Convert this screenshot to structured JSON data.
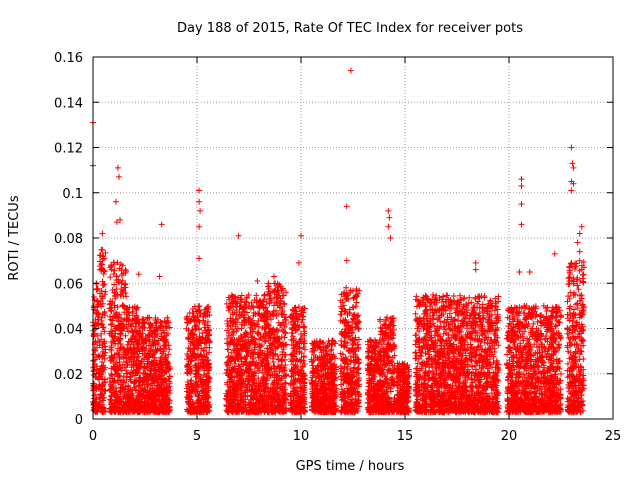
{
  "chart_data": {
    "type": "scatter",
    "title": "Day 188 of 2015, Rate Of TEC Index for receiver pots",
    "xlabel": "GPS time / hours",
    "ylabel": "ROTI / TECUs",
    "xlim": [
      0,
      25
    ],
    "ylim": [
      0,
      0.16
    ],
    "xticks": [
      0,
      5,
      10,
      15,
      20,
      25
    ],
    "xtick_labels": [
      "0",
      "5",
      "10",
      "15",
      "20",
      "25"
    ],
    "yticks": [
      0,
      0.02,
      0.04,
      0.06,
      0.08,
      0.1,
      0.12,
      0.14,
      0.16
    ],
    "ytick_labels": [
      "0",
      "0.02",
      "0.04",
      "0.06",
      "0.08",
      "0.1",
      "0.12",
      "0.14",
      "0.16"
    ],
    "grid": true,
    "marker": "+",
    "color": "#ff0000",
    "clusters": [
      {
        "x0": 0.0,
        "x1": 0.3,
        "ymax": 0.06
      },
      {
        "x0": 0.3,
        "x1": 0.6,
        "ymax": 0.075
      },
      {
        "x0": 0.8,
        "x1": 1.6,
        "ymax": 0.07
      },
      {
        "x0": 1.6,
        "x1": 2.2,
        "ymax": 0.05
      },
      {
        "x0": 2.2,
        "x1": 2.8,
        "ymax": 0.045
      },
      {
        "x0": 2.8,
        "x1": 3.7,
        "ymax": 0.045
      },
      {
        "x0": 4.5,
        "x1": 5.6,
        "ymax": 0.05
      },
      {
        "x0": 6.4,
        "x1": 8.4,
        "ymax": 0.055
      },
      {
        "x0": 8.4,
        "x1": 9.3,
        "ymax": 0.06
      },
      {
        "x0": 9.5,
        "x1": 10.2,
        "ymax": 0.05
      },
      {
        "x0": 10.5,
        "x1": 11.7,
        "ymax": 0.035
      },
      {
        "x0": 11.9,
        "x1": 12.8,
        "ymax": 0.058
      },
      {
        "x0": 13.2,
        "x1": 13.8,
        "ymax": 0.035
      },
      {
        "x0": 13.8,
        "x1": 14.5,
        "ymax": 0.045
      },
      {
        "x0": 14.6,
        "x1": 15.2,
        "ymax": 0.025
      },
      {
        "x0": 15.5,
        "x1": 19.5,
        "ymax": 0.055
      },
      {
        "x0": 19.9,
        "x1": 22.5,
        "ymax": 0.05
      },
      {
        "x0": 22.8,
        "x1": 23.6,
        "ymax": 0.07
      }
    ],
    "outliers": [
      {
        "x": 0.0,
        "y": 0.131
      },
      {
        "x": 0.0,
        "y": 0.112
      },
      {
        "x": 0.45,
        "y": 0.082
      },
      {
        "x": 1.2,
        "y": 0.111
      },
      {
        "x": 1.25,
        "y": 0.107
      },
      {
        "x": 1.1,
        "y": 0.096
      },
      {
        "x": 1.15,
        "y": 0.087
      },
      {
        "x": 1.3,
        "y": 0.088
      },
      {
        "x": 3.3,
        "y": 0.086
      },
      {
        "x": 3.2,
        "y": 0.063
      },
      {
        "x": 5.1,
        "y": 0.101
      },
      {
        "x": 5.1,
        "y": 0.096
      },
      {
        "x": 5.15,
        "y": 0.092
      },
      {
        "x": 5.1,
        "y": 0.085
      },
      {
        "x": 5.1,
        "y": 0.071
      },
      {
        "x": 7.0,
        "y": 0.081
      },
      {
        "x": 10.0,
        "y": 0.081
      },
      {
        "x": 9.9,
        "y": 0.069
      },
      {
        "x": 12.2,
        "y": 0.094
      },
      {
        "x": 12.4,
        "y": 0.154
      },
      {
        "x": 12.2,
        "y": 0.07
      },
      {
        "x": 14.2,
        "y": 0.092
      },
      {
        "x": 14.25,
        "y": 0.089
      },
      {
        "x": 14.2,
        "y": 0.085
      },
      {
        "x": 14.3,
        "y": 0.08
      },
      {
        "x": 18.4,
        "y": 0.069
      },
      {
        "x": 18.4,
        "y": 0.066
      },
      {
        "x": 20.6,
        "y": 0.106
      },
      {
        "x": 20.6,
        "y": 0.103
      },
      {
        "x": 20.6,
        "y": 0.095
      },
      {
        "x": 20.6,
        "y": 0.086
      },
      {
        "x": 20.5,
        "y": 0.065
      },
      {
        "x": 21.0,
        "y": 0.065
      },
      {
        "x": 22.2,
        "y": 0.073
      },
      {
        "x": 23.0,
        "y": 0.12
      },
      {
        "x": 23.05,
        "y": 0.113
      },
      {
        "x": 23.1,
        "y": 0.111
      },
      {
        "x": 23.0,
        "y": 0.105
      },
      {
        "x": 23.1,
        "y": 0.104
      },
      {
        "x": 23.0,
        "y": 0.101
      },
      {
        "x": 23.5,
        "y": 0.085
      },
      {
        "x": 23.4,
        "y": 0.082
      },
      {
        "x": 23.3,
        "y": 0.078
      },
      {
        "x": 23.4,
        "y": 0.074
      },
      {
        "x": 8.7,
        "y": 0.063
      },
      {
        "x": 2.2,
        "y": 0.064
      },
      {
        "x": 7.9,
        "y": 0.061
      }
    ]
  }
}
